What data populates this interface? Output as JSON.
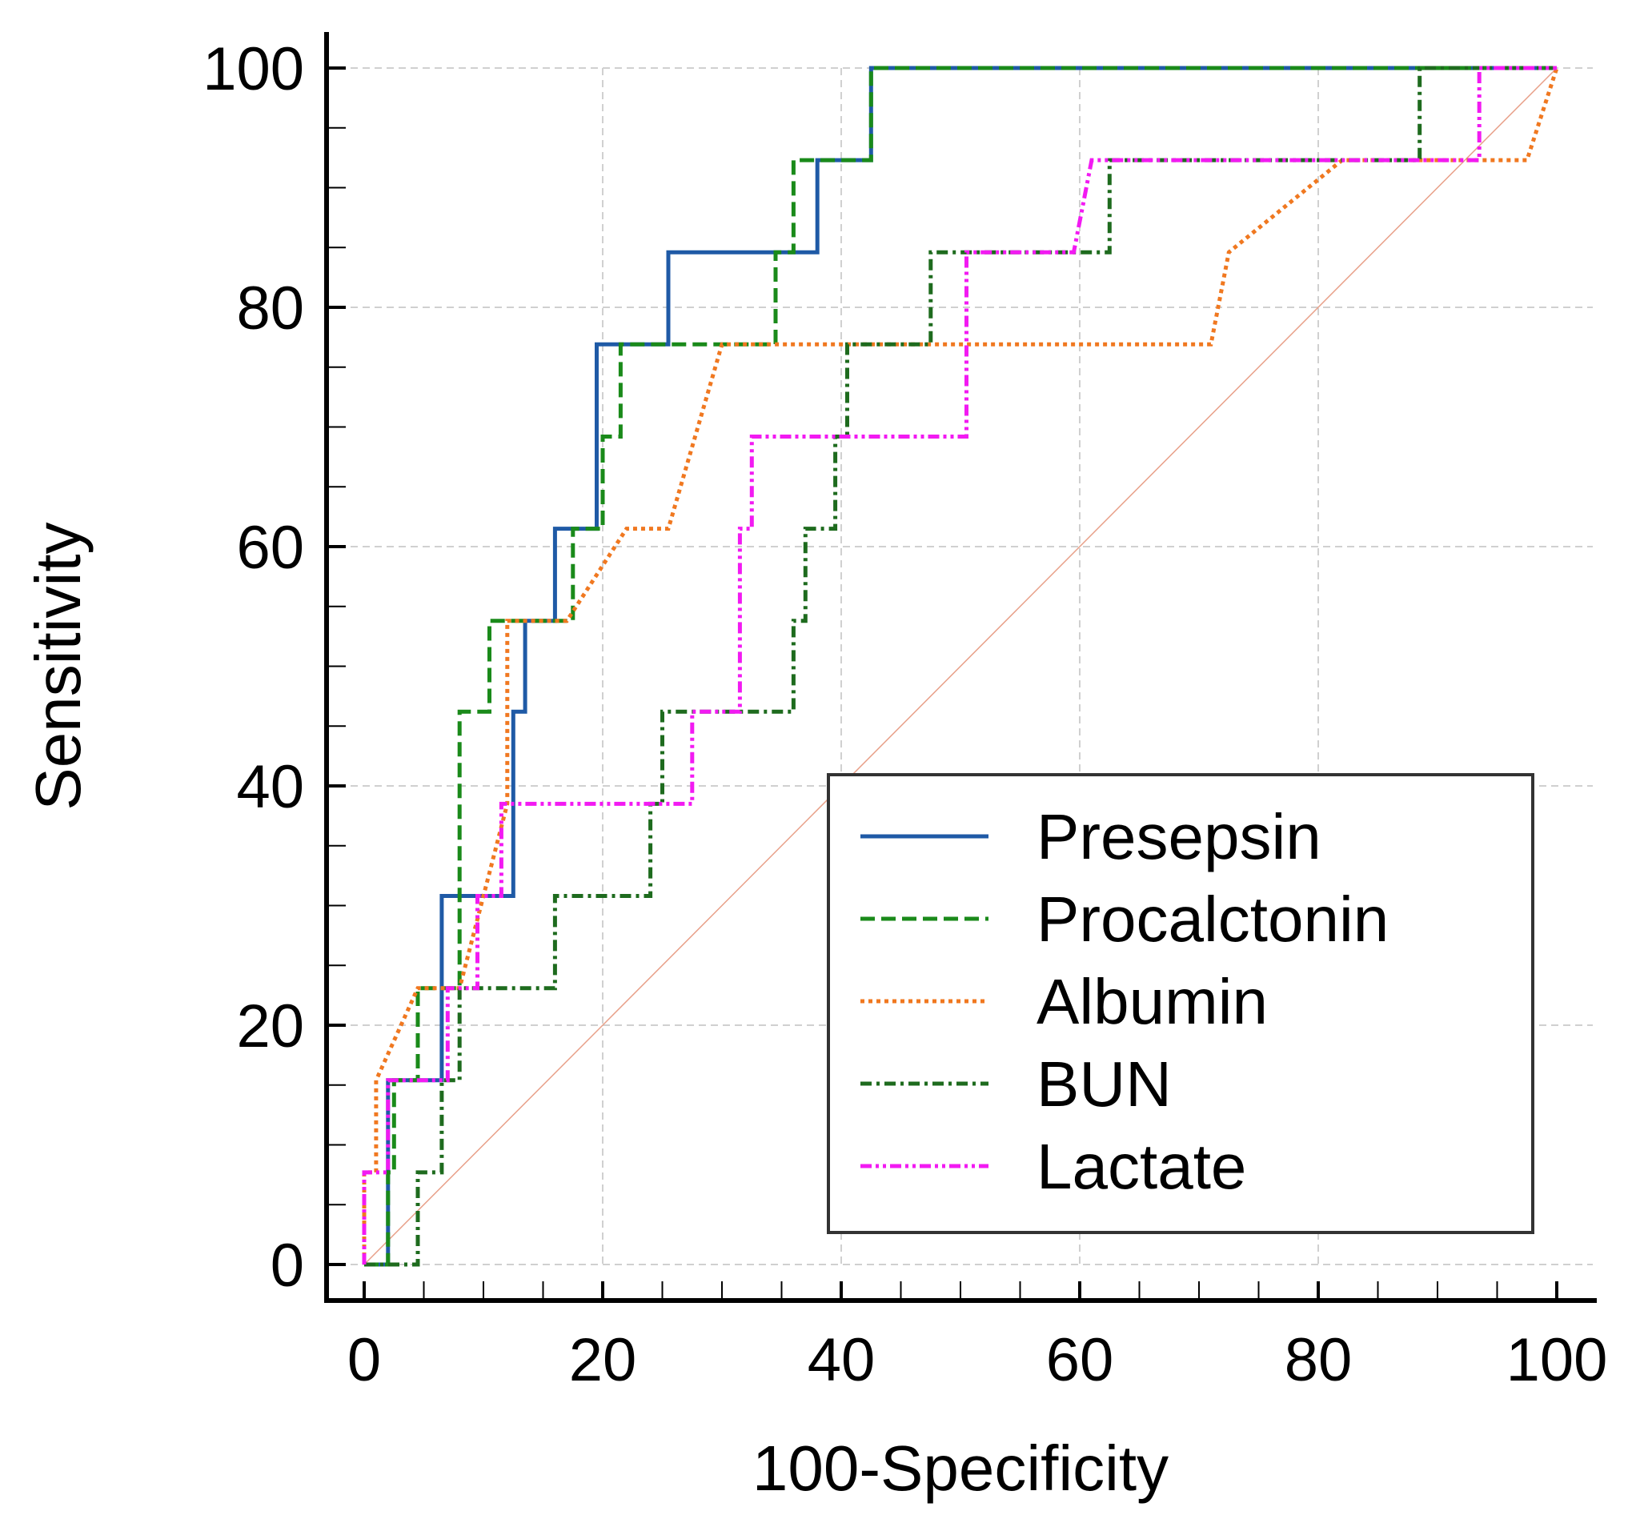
{
  "chart_data": {
    "type": "line",
    "title": "",
    "xlabel": "100-Specificity",
    "ylabel": "Sensitivity",
    "xlim": [
      0,
      100
    ],
    "ylim": [
      0,
      100
    ],
    "xticks": [
      0,
      20,
      40,
      60,
      80,
      100
    ],
    "yticks": [
      0,
      20,
      40,
      60,
      80,
      100
    ],
    "grid": true,
    "legend_position": "bottom-right",
    "reference_line": {
      "name": "Reference",
      "x": [
        0,
        100
      ],
      "y": [
        0,
        100
      ],
      "color": "#e8a089"
    },
    "series": [
      {
        "name": "Presepsin",
        "color": "#1f5aa6",
        "dash": "solid",
        "x": [
          0,
          2,
          2,
          6.5,
          6.5,
          12.5,
          12.5,
          13.5,
          13.5,
          16,
          16,
          19.5,
          19.5,
          25.5,
          25.5,
          38,
          38,
          42.5,
          42.5,
          100
        ],
        "y": [
          0,
          0,
          15.4,
          15.4,
          30.8,
          30.8,
          46.2,
          46.2,
          53.8,
          53.8,
          61.5,
          61.5,
          76.9,
          76.9,
          84.6,
          84.6,
          92.3,
          92.3,
          100,
          100
        ]
      },
      {
        "name": "Procalctonin",
        "color": "#1a8a1a",
        "dash": "dashed",
        "x": [
          0,
          2,
          2,
          2.5,
          2.5,
          4.5,
          4.5,
          8,
          8,
          10.5,
          10.5,
          17.5,
          17.5,
          20,
          20,
          21.5,
          21.5,
          34.5,
          34.5,
          36,
          36,
          42.5,
          42.5,
          100
        ],
        "y": [
          0,
          0,
          7.7,
          7.7,
          15.4,
          15.4,
          23.1,
          23.1,
          46.2,
          46.2,
          53.8,
          53.8,
          61.5,
          61.5,
          69.2,
          69.2,
          76.9,
          76.9,
          84.6,
          84.6,
          92.3,
          92.3,
          100,
          100
        ]
      },
      {
        "name": "Albumin",
        "color": "#f07820",
        "dash": "dotted",
        "x": [
          0,
          0,
          1,
          1,
          4.5,
          8,
          12,
          12,
          17,
          22,
          25.5,
          30,
          71,
          72.5,
          82,
          97.5,
          100
        ],
        "y": [
          0,
          7.7,
          7.7,
          15.4,
          23.1,
          23.1,
          38.5,
          53.8,
          53.8,
          61.5,
          61.5,
          76.9,
          76.9,
          84.6,
          92.3,
          92.3,
          100
        ]
      },
      {
        "name": "BUN",
        "color": "#1e6b1e",
        "dash": "dashdot",
        "x": [
          0,
          4.5,
          4.5,
          6.5,
          6.5,
          8,
          8,
          16,
          16,
          24,
          24,
          25,
          25,
          36,
          36,
          37,
          37,
          39.5,
          39.5,
          40.5,
          40.5,
          47.5,
          47.5,
          62.5,
          62.5,
          88.5,
          88.5,
          100
        ],
        "y": [
          0,
          0,
          7.7,
          7.7,
          15.4,
          15.4,
          23.1,
          23.1,
          30.8,
          30.8,
          38.5,
          38.5,
          46.2,
          46.2,
          53.8,
          53.8,
          61.5,
          61.5,
          69.2,
          69.2,
          76.9,
          76.9,
          84.6,
          84.6,
          92.3,
          92.3,
          100,
          100
        ]
      },
      {
        "name": "Lactate",
        "color": "#f21af2",
        "dash": "dashdotdot",
        "x": [
          0,
          0,
          2,
          2,
          7,
          7,
          9.5,
          9.5,
          11.5,
          11.5,
          27.5,
          27.5,
          31.5,
          31.5,
          32.5,
          32.5,
          50.5,
          50.5,
          59.5,
          61,
          93.5,
          93.5,
          100
        ],
        "y": [
          0,
          7.7,
          7.7,
          15.4,
          15.4,
          23.1,
          23.1,
          30.8,
          30.8,
          38.5,
          38.5,
          46.2,
          46.2,
          61.5,
          61.5,
          69.2,
          69.2,
          84.6,
          84.6,
          92.3,
          92.3,
          100,
          100
        ]
      }
    ]
  }
}
